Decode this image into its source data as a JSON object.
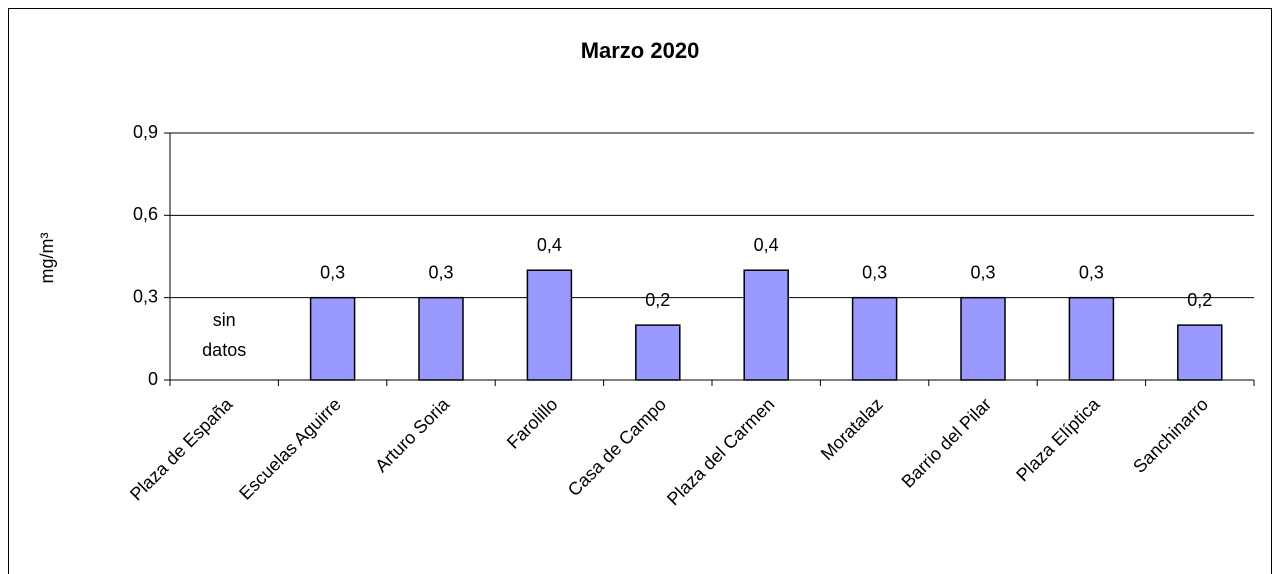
{
  "chart_data": {
    "type": "bar",
    "title": "Marzo 2020",
    "y_label": "mg/m³",
    "categories": [
      "Plaza de España",
      "Escuelas Aguirre",
      "Arturo Soria",
      "Farolillo",
      "Casa de Campo",
      "Plaza del Carmen",
      "Moratalaz",
      "Barrio del Pilar",
      "Plaza Elíptica",
      "Sanchinarro"
    ],
    "values": [
      null,
      0.3,
      0.3,
      0.4,
      0.2,
      0.4,
      0.3,
      0.3,
      0.3,
      0.2
    ],
    "value_labels": [
      null,
      "0,3",
      "0,3",
      "0,4",
      "0,2",
      "0,4",
      "0,3",
      "0,3",
      "0,3",
      "0,2"
    ],
    "annotation": [
      "sin",
      "datos"
    ],
    "color": "#9999ff",
    "ylim": [
      0,
      0.9
    ],
    "yticks": [
      {
        "value": 0,
        "label": "0"
      },
      {
        "value": 0.3,
        "label": "0,3"
      },
      {
        "value": 0.6,
        "label": "0,6"
      },
      {
        "value": 0.9,
        "label": "0,9"
      }
    ],
    "grid": true
  }
}
